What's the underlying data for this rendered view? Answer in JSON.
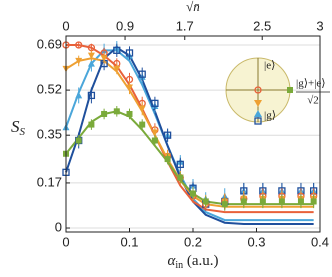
{
  "chart_data": {
    "type": "line",
    "xlabel": {
      "main": "α",
      "sub": "in",
      "rest": " (a.u.)"
    },
    "ylabel": {
      "main": "S",
      "sub": "S"
    },
    "x2label": "√n̄",
    "xlim": [
      0,
      0.4
    ],
    "xticks": [
      0,
      0.1,
      0.2,
      0.3,
      0.4
    ],
    "x2ticks": [
      {
        "value": 0,
        "label": "0"
      },
      {
        "value": 0.093,
        "label": "0.9"
      },
      {
        "value": 0.187,
        "label": "1.7"
      },
      {
        "value": 0.309,
        "label": "2.5"
      },
      {
        "value": 0.4,
        "label": "3"
      }
    ],
    "ylim": [
      -0.015,
      0.724
    ],
    "yticks": [
      0,
      0.17,
      0.35,
      0.52,
      0.69
    ],
    "grid": true,
    "x": [
      0,
      0.02,
      0.04,
      0.06,
      0.08,
      0.1,
      0.12,
      0.14,
      0.16,
      0.18,
      0.2,
      0.22,
      0.25,
      0.28,
      0.31,
      0.34,
      0.37,
      0.39
    ],
    "series": [
      {
        "color": "#4aa6da",
        "marker": "triangle-up",
        "values": [
          0.38,
          0.5,
          0.62,
          0.67,
          0.68,
          0.65,
          0.57,
          0.46,
          0.35,
          0.25,
          0.16,
          0.11,
          0.12,
          0.14,
          0.14,
          0.14,
          0.14,
          0.14
        ],
        "errors": [
          0.03,
          0.03,
          0.03,
          0.025,
          0.025,
          0.025,
          0.025,
          0.025,
          0.025,
          0.025,
          0.025,
          0.025,
          0.03,
          0.03,
          0.03,
          0.03,
          0.03,
          0.03
        ],
        "fit": [
          0.38,
          0.51,
          0.62,
          0.67,
          0.67,
          0.63,
          0.54,
          0.43,
          0.31,
          0.2,
          0.11,
          0.06,
          0.03,
          0.03,
          0.03,
          0.03,
          0.03,
          0.03
        ]
      },
      {
        "color": "#1f4f9c",
        "marker": "square-open",
        "values": [
          0.21,
          0.33,
          0.5,
          0.62,
          0.67,
          0.66,
          0.58,
          0.47,
          0.35,
          0.24,
          0.15,
          0.09,
          0.1,
          0.14,
          0.14,
          0.14,
          0.14,
          0.14
        ],
        "errors": [
          0.03,
          0.03,
          0.03,
          0.025,
          0.025,
          0.025,
          0.025,
          0.025,
          0.025,
          0.025,
          0.025,
          0.025,
          0.03,
          0.03,
          0.03,
          0.03,
          0.03,
          0.03
        ],
        "fit": [
          0.21,
          0.35,
          0.52,
          0.64,
          0.68,
          0.65,
          0.56,
          0.44,
          0.31,
          0.19,
          0.1,
          0.05,
          0.02,
          0.015,
          0.015,
          0.015,
          0.015,
          0.015
        ]
      },
      {
        "color": "#e8613a",
        "marker": "circle-open",
        "values": [
          0.69,
          0.69,
          0.68,
          0.66,
          0.62,
          0.56,
          0.47,
          0.37,
          0.27,
          0.19,
          0.12,
          0.09,
          0.1,
          0.11,
          0.12,
          0.12,
          0.12,
          0.12
        ],
        "errors": [
          0.01,
          0.01,
          0.015,
          0.02,
          0.02,
          0.025,
          0.025,
          0.025,
          0.025,
          0.025,
          0.025,
          0.025,
          0.03,
          0.03,
          0.03,
          0.03,
          0.03,
          0.03
        ],
        "fit": [
          0.69,
          0.69,
          0.68,
          0.65,
          0.61,
          0.54,
          0.45,
          0.35,
          0.25,
          0.16,
          0.1,
          0.07,
          0.06,
          0.06,
          0.06,
          0.06,
          0.06,
          0.06
        ]
      },
      {
        "color": "#eea032",
        "marker": "triangle-down",
        "values": [
          0.6,
          0.63,
          0.65,
          0.64,
          0.6,
          0.53,
          0.45,
          0.36,
          0.27,
          0.19,
          0.13,
          0.1,
          0.1,
          0.11,
          0.11,
          0.11,
          0.11,
          0.11
        ],
        "errors": [
          0.02,
          0.02,
          0.02,
          0.02,
          0.02,
          0.025,
          0.025,
          0.025,
          0.025,
          0.025,
          0.025,
          0.025,
          0.03,
          0.03,
          0.03,
          0.03,
          0.03,
          0.03
        ],
        "fit": [
          0.6,
          0.63,
          0.64,
          0.63,
          0.59,
          0.52,
          0.44,
          0.35,
          0.26,
          0.18,
          0.12,
          0.09,
          0.08,
          0.08,
          0.08,
          0.08,
          0.08,
          0.08
        ]
      },
      {
        "color": "#7aaa3a",
        "marker": "square",
        "values": [
          0.28,
          0.33,
          0.39,
          0.43,
          0.44,
          0.43,
          0.39,
          0.33,
          0.26,
          0.19,
          0.13,
          0.1,
          0.09,
          0.1,
          0.1,
          0.1,
          0.1,
          0.1
        ],
        "errors": [
          0.02,
          0.02,
          0.02,
          0.02,
          0.02,
          0.02,
          0.02,
          0.02,
          0.02,
          0.02,
          0.02,
          0.02,
          0.025,
          0.025,
          0.025,
          0.025,
          0.025,
          0.025
        ],
        "fit": [
          0.28,
          0.34,
          0.4,
          0.43,
          0.44,
          0.42,
          0.37,
          0.31,
          0.25,
          0.18,
          0.13,
          0.1,
          0.09,
          0.09,
          0.09,
          0.09,
          0.09,
          0.09
        ]
      }
    ],
    "inset": {
      "top": "|e⟩",
      "bottom": "|g⟩",
      "right_numerator": "|g⟩+|e⟩",
      "right_denominator": "√2"
    }
  }
}
